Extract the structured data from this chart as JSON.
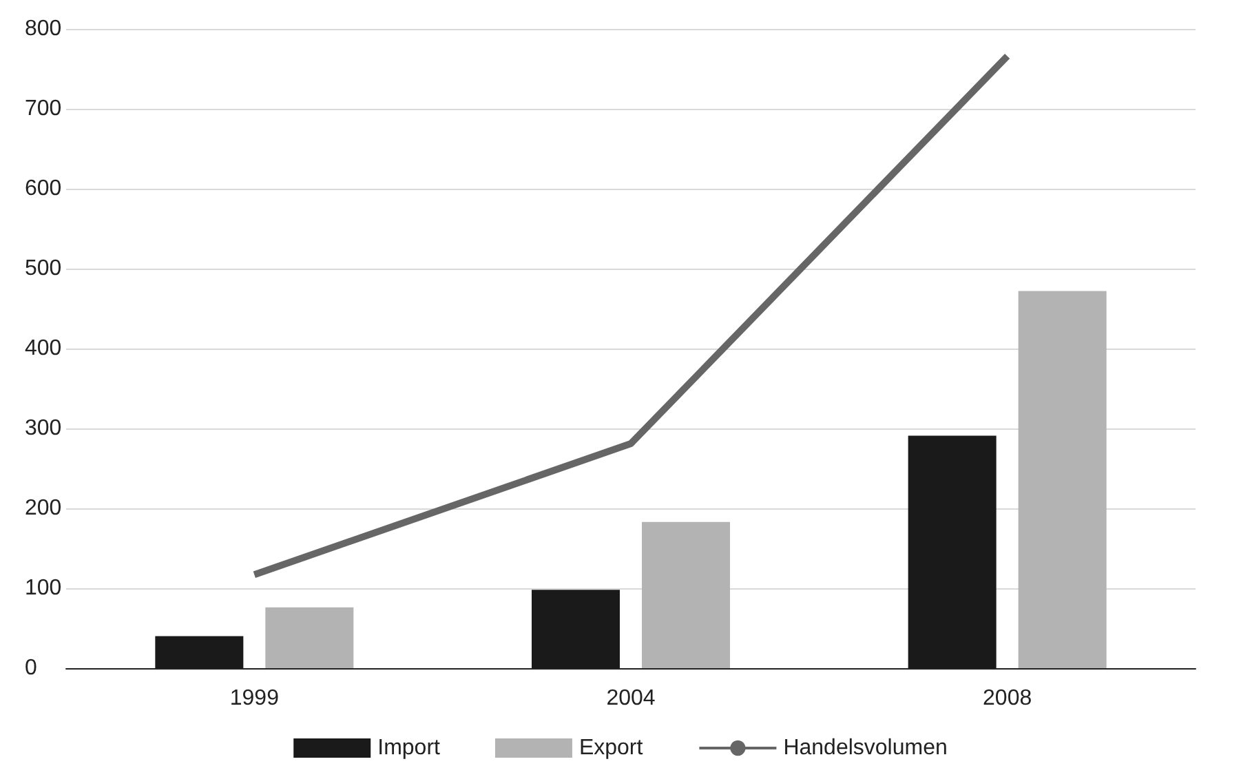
{
  "chart_data": {
    "type": "bar",
    "categories": [
      "1999",
      "2004",
      "2008"
    ],
    "series": [
      {
        "name": "Import",
        "color": "#1a1a1a",
        "values": [
          40,
          98,
          291
        ]
      },
      {
        "name": "Export",
        "color": "#b3b3b3",
        "values": [
          76,
          183,
          472
        ]
      },
      {
        "name": "Handelsvolumen",
        "type": "line",
        "color": "#666666",
        "values": [
          117,
          281,
          766
        ]
      }
    ],
    "ylim": [
      0,
      800
    ],
    "yticks": [
      0,
      100,
      200,
      300,
      400,
      500,
      600,
      700,
      800
    ],
    "grid": "y",
    "legend": "bottom",
    "marker": "none"
  }
}
